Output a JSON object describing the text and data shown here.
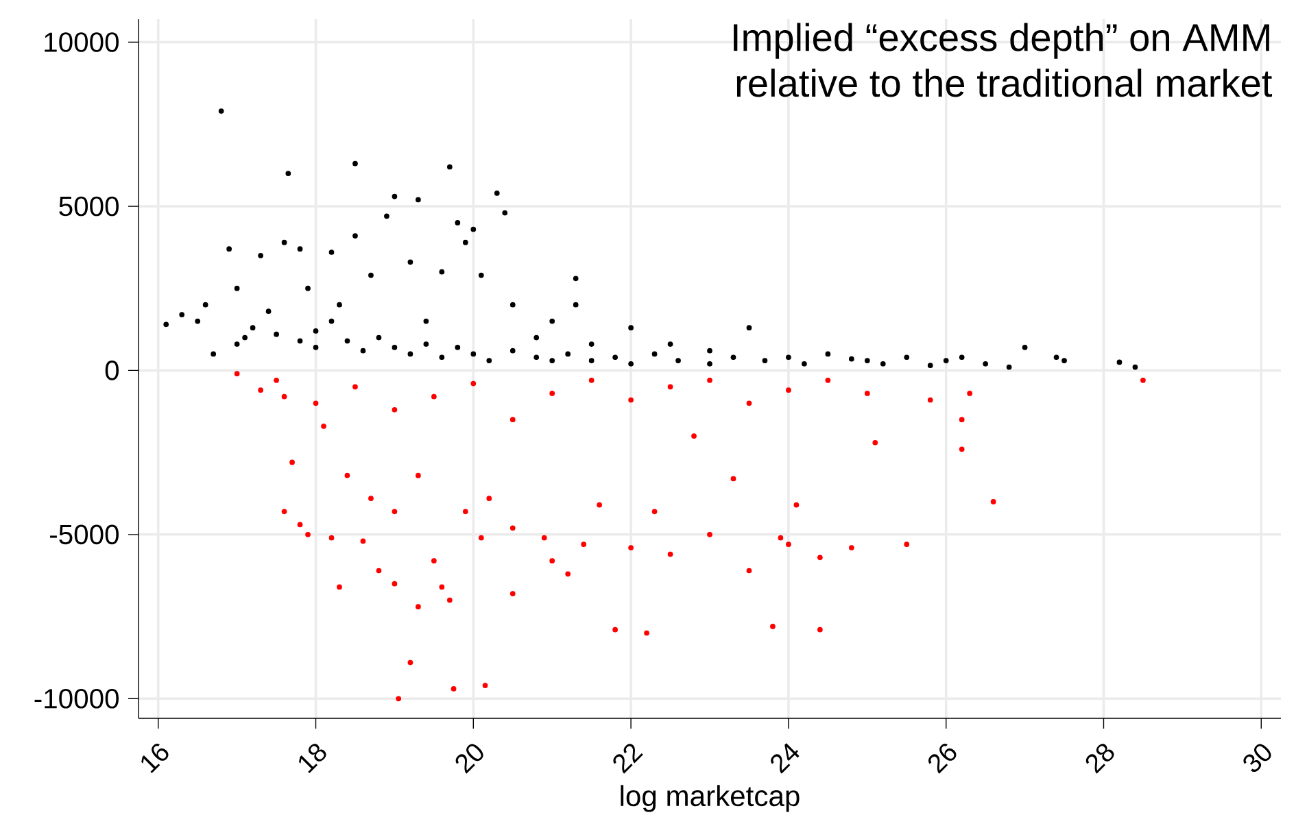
{
  "chart_data": {
    "type": "scatter",
    "title": "Implied “excess depth” on AMM\nrelative to the traditional market",
    "xlabel": "log marketcap",
    "xlim": [
      15.75,
      30.25
    ],
    "ylim": [
      -10600,
      10700
    ],
    "xticks": [
      16,
      18,
      20,
      22,
      24,
      26,
      28,
      30
    ],
    "yticks": [
      -10000,
      -5000,
      0,
      5000,
      10000
    ],
    "grid": true,
    "marker": "circle",
    "series": [
      {
        "color": "#000000",
        "x": [
          16.1,
          16.3,
          16.5,
          16.6,
          16.8,
          16.9,
          17.0,
          17.1,
          17.3,
          17.4,
          17.6,
          17.65,
          17.8,
          17.9,
          18.0,
          18.2,
          18.3,
          18.5,
          18.5,
          18.7,
          18.9,
          19.0,
          19.2,
          19.3,
          19.4,
          19.6,
          19.7,
          19.8,
          19.9,
          20.0,
          20.1,
          20.3,
          20.4,
          20.5,
          20.8,
          21.0,
          21.3,
          21.3,
          21.5,
          22.0,
          22.5,
          23.0,
          23.5,
          24.0,
          24.5,
          25.0,
          25.5,
          26.0,
          26.5,
          27.0,
          27.5,
          28.2,
          28.4,
          16.7,
          17.0,
          17.2,
          17.5,
          17.8,
          18.0,
          18.2,
          18.4,
          18.6,
          18.8,
          19.0,
          19.2,
          19.4,
          19.6,
          19.8,
          20.0,
          20.2,
          20.5,
          20.8,
          21.0,
          21.2,
          21.5,
          21.8,
          22.0,
          22.3,
          22.6,
          23.0,
          23.3,
          23.7,
          24.2,
          24.8,
          25.2,
          25.8,
          26.2,
          26.8,
          27.4
        ],
        "values": [
          1400,
          1700,
          1500,
          2000,
          7900,
          3700,
          2500,
          1000,
          3500,
          1800,
          3900,
          6000,
          3700,
          2500,
          1200,
          3600,
          2000,
          6300,
          4100,
          2900,
          4700,
          5300,
          3300,
          5200,
          1500,
          3000,
          6200,
          4500,
          3900,
          4300,
          2900,
          5400,
          4800,
          2000,
          1000,
          1500,
          2800,
          2000,
          800,
          1300,
          800,
          600,
          1300,
          400,
          500,
          300,
          400,
          300,
          200,
          700,
          300,
          250,
          100,
          500,
          800,
          1300,
          1100,
          900,
          700,
          1500,
          900,
          600,
          1000,
          700,
          500,
          800,
          400,
          700,
          500,
          300,
          600,
          400,
          300,
          500,
          300,
          400,
          200,
          500,
          300,
          200,
          400,
          300,
          200,
          350,
          200,
          150,
          400,
          100,
          400
        ]
      },
      {
        "color": "#ff0000",
        "x": [
          17.0,
          17.3,
          17.6,
          17.6,
          17.7,
          17.8,
          17.9,
          18.1,
          18.2,
          18.3,
          18.4,
          18.6,
          18.7,
          18.8,
          19.0,
          19.0,
          19.05,
          19.2,
          19.3,
          19.3,
          19.5,
          19.6,
          19.7,
          19.75,
          19.9,
          20.1,
          20.15,
          20.2,
          20.5,
          20.5,
          20.9,
          21.0,
          21.2,
          21.4,
          21.6,
          21.8,
          22.0,
          22.2,
          22.3,
          22.5,
          22.8,
          23.0,
          23.3,
          23.5,
          23.8,
          23.9,
          24.0,
          24.1,
          24.4,
          24.4,
          24.8,
          25.1,
          25.5,
          26.2,
          26.6,
          28.5,
          17.5,
          18.0,
          18.5,
          19.0,
          19.5,
          20.0,
          20.5,
          21.0,
          21.5,
          22.0,
          22.5,
          23.0,
          23.5,
          24.0,
          24.5,
          25.0,
          25.8,
          26.2,
          26.3
        ],
        "values": [
          -100,
          -600,
          -800,
          -4300,
          -2800,
          -4700,
          -5000,
          -1700,
          -5100,
          -6600,
          -3200,
          -5200,
          -3900,
          -6100,
          -4300,
          -6500,
          -10000,
          -8900,
          -7200,
          -3200,
          -5800,
          -6600,
          -7000,
          -9700,
          -4300,
          -5100,
          -9600,
          -3900,
          -6800,
          -4800,
          -5100,
          -5800,
          -6200,
          -5300,
          -4100,
          -7900,
          -5400,
          -8000,
          -4300,
          -5600,
          -2000,
          -5000,
          -3300,
          -6100,
          -7800,
          -5100,
          -5300,
          -4100,
          -5700,
          -7900,
          -5400,
          -2200,
          -5300,
          -2400,
          -4000,
          -300,
          -300,
          -1000,
          -500,
          -1200,
          -800,
          -400,
          -1500,
          -700,
          -300,
          -900,
          -500,
          -300,
          -1000,
          -600,
          -300,
          -700,
          -900,
          -1500,
          -700
        ]
      }
    ]
  }
}
